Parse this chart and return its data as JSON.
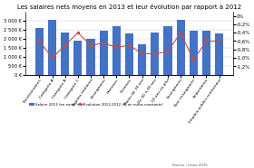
{
  "title": "Les salaires nets moyens en 2013 et leur évolution par rapport à 2012",
  "salaries": [
    2600,
    3050,
    2350,
    1900,
    2000,
    2450,
    2700,
    2300,
    1700,
    2350,
    2700,
    3050,
    2450,
    2450,
    2300
  ],
  "evolution": [
    -0.6,
    -1.0,
    -0.7,
    -0.4,
    -0.7,
    -0.65,
    -0.75,
    -0.7,
    -0.9,
    -0.9,
    -0.85,
    -0.4,
    -1.05,
    -0.6,
    -0.6
  ],
  "xlabels": [
    "Fonctionnaires",
    "Catégorie A",
    "Catégorie B",
    "Catégorie C",
    "Agents titulaires",
    "Enseignants",
    "Hommes",
    "Femmes",
    "Moins de 30 ans",
    "De 30 à 49 ans",
    "50 ans ou plus",
    "Enseignants",
    "Non enseignants",
    "Sédentaires",
    "Emplois publics territoriaux"
  ],
  "bar_color": "#4472C4",
  "line_color": "#C0504D",
  "bg_color": "#ffffff",
  "grid_color": "#cccccc",
  "left_ylim": [
    0,
    3500
  ],
  "left_yticks": [
    0,
    500,
    1000,
    1500,
    2000,
    2500,
    3000
  ],
  "left_yticklabels": [
    "0 €",
    "500 €",
    "1 000 €",
    "1 500 €",
    "2 000 €",
    "2 500 €",
    "3 000 €"
  ],
  "right_ylim": [
    -1.4,
    0.1
  ],
  "right_yticks": [
    0.0,
    -0.2,
    -0.4,
    -0.6,
    -0.8,
    -1.0,
    -1.2
  ],
  "right_yticklabels": [
    "0%",
    "-0,2%",
    "-0,4%",
    "-0,6%",
    "-0,8%",
    "-1,0%",
    "-1,2%"
  ],
  "source": "Source : Insee 2015",
  "legend_bar": "Salaire 2013 (en euro)",
  "legend_line": "Évolution 2013-2012 (% en euros constants)"
}
